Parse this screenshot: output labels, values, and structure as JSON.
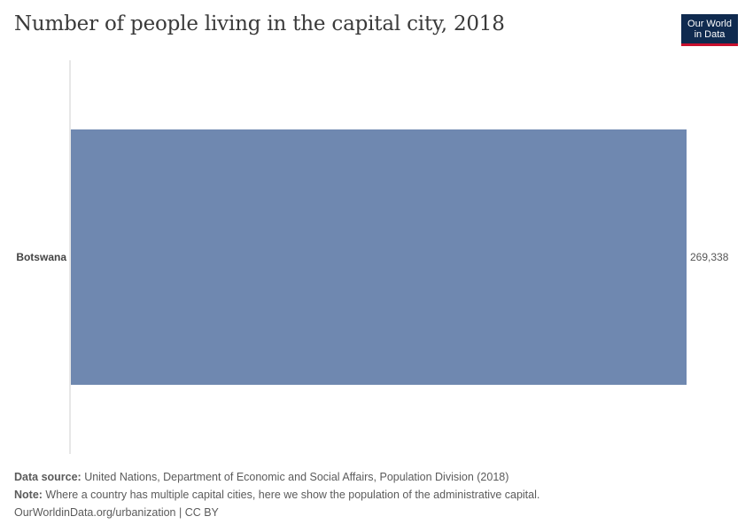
{
  "title": "Number of people living in the capital city, 2018",
  "logo": {
    "line1": "Our World",
    "line2": "in Data"
  },
  "chart_data": {
    "type": "bar",
    "orientation": "horizontal",
    "categories": [
      "Botswana"
    ],
    "values": [
      269338
    ],
    "value_labels": [
      "269,338"
    ],
    "title": "Number of people living in the capital city, 2018",
    "xlabel": "",
    "ylabel": "",
    "xlim": [
      0,
      269338
    ],
    "grid": false,
    "bar_color": "#6f88b0"
  },
  "footer": {
    "source_label": "Data source:",
    "source_text": " United Nations, Department of Economic and Social Affairs, Population Division (2018)",
    "note_label": "Note:",
    "note_text": " Where a country has multiple capital cities, here we show the population of the administrative capital.",
    "credit": "OurWorldinData.org/urbanization | CC BY"
  }
}
